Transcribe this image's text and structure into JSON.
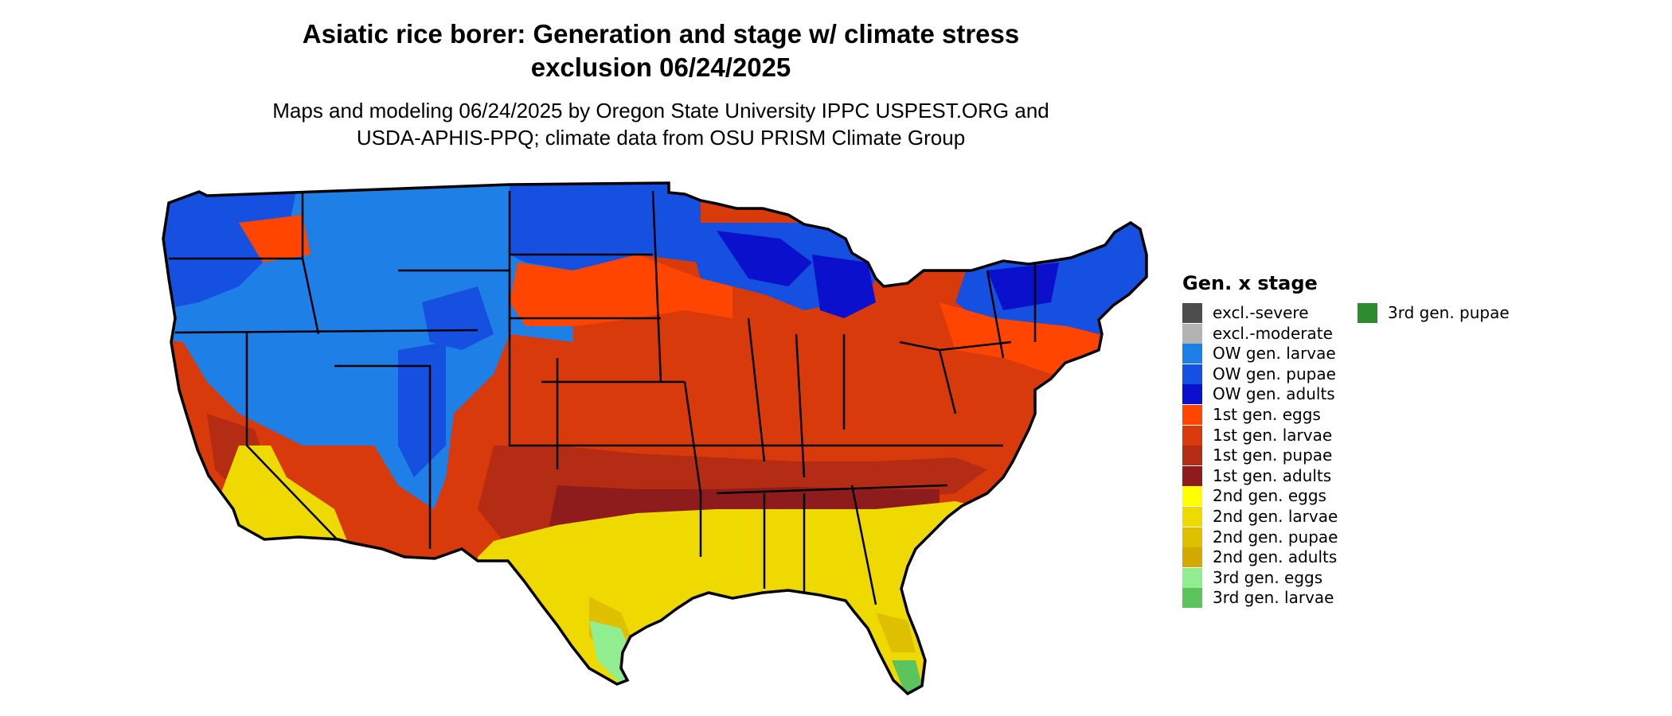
{
  "title_line1": "Asiatic rice borer: Generation and stage w/ climate stress",
  "title_line2": "exclusion 06/24/2025",
  "subtitle_line1": "Maps and modeling 06/24/2025 by Oregon State University IPPC USPEST.ORG and",
  "subtitle_line2": "USDA-APHIS-PPQ; climate data from OSU PRISM Climate Group",
  "legend": {
    "title": "Gen. x stage",
    "items": [
      {
        "label": "excl.-severe",
        "color": "#4d4d4d"
      },
      {
        "label": "excl.-moderate",
        "color": "#b3b3b3"
      },
      {
        "label": "OW gen. larvae",
        "color": "#1e7fe6"
      },
      {
        "label": "OW gen. pupae",
        "color": "#1550e0"
      },
      {
        "label": "OW gen. adults",
        "color": "#0a10cc"
      },
      {
        "label": "1st gen. eggs",
        "color": "#ff4500"
      },
      {
        "label": "1st gen. larvae",
        "color": "#d93a0b"
      },
      {
        "label": "1st gen. pupae",
        "color": "#b52c14"
      },
      {
        "label": "1st gen. adults",
        "color": "#8e1c1c"
      },
      {
        "label": "2nd gen. eggs",
        "color": "#ffff00"
      },
      {
        "label": "2nd gen. larvae",
        "color": "#eeda00"
      },
      {
        "label": "2nd gen. pupae",
        "color": "#dfc000"
      },
      {
        "label": "2nd gen. adults",
        "color": "#d2aa00"
      },
      {
        "label": "3rd gen. eggs",
        "color": "#90ee90"
      },
      {
        "label": "3rd gen. larvae",
        "color": "#5cc45c"
      },
      {
        "label": "3rd gen. pupae",
        "color": "#2e8b2e"
      }
    ]
  }
}
